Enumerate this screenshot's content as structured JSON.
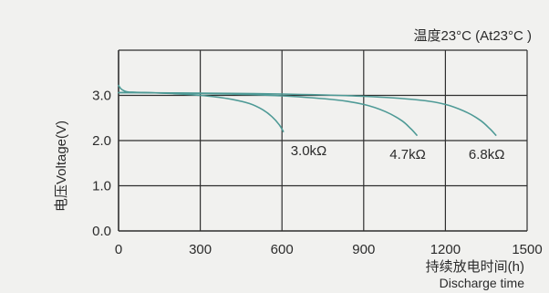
{
  "chart_data": {
    "type": "line",
    "annotation": "温度23°C (At23°C )",
    "xlabel": "持续放电时间(h)",
    "xlabel_en": "Discharge time",
    "ylabel": "电压Voltage(V)",
    "xlim": [
      0,
      1500
    ],
    "ylim": [
      0,
      4
    ],
    "x_ticks": [
      0,
      300,
      600,
      900,
      1200,
      1500
    ],
    "x_tick_labels": [
      "0",
      "300",
      "600",
      "900",
      "1200",
      "1500"
    ],
    "y_ticks": [
      0,
      1,
      2,
      3
    ],
    "y_tick_labels": [
      "0.0",
      "1.0",
      "2.0",
      "3.0"
    ],
    "grid": true,
    "line_color": "#4e9a96",
    "series": [
      {
        "name": "3.0kΩ",
        "x": [
          0,
          10,
          30,
          60,
          120,
          200,
          300,
          400,
          480,
          530,
          565,
          590,
          605
        ],
        "y": [
          3.22,
          3.14,
          3.08,
          3.07,
          3.06,
          3.04,
          3.0,
          2.93,
          2.82,
          2.68,
          2.52,
          2.35,
          2.2
        ]
      },
      {
        "name": "4.7kΩ",
        "x": [
          0,
          60,
          200,
          400,
          600,
          800,
          900,
          980,
          1040,
          1075,
          1095
        ],
        "y": [
          3.06,
          3.06,
          3.05,
          3.03,
          2.99,
          2.9,
          2.8,
          2.64,
          2.44,
          2.25,
          2.12
        ]
      },
      {
        "name": "6.8kΩ",
        "x": [
          0,
          60,
          300,
          600,
          900,
          1100,
          1200,
          1280,
          1330,
          1365,
          1385
        ],
        "y": [
          3.06,
          3.06,
          3.05,
          3.03,
          2.98,
          2.9,
          2.8,
          2.62,
          2.44,
          2.25,
          2.12
        ]
      }
    ]
  }
}
